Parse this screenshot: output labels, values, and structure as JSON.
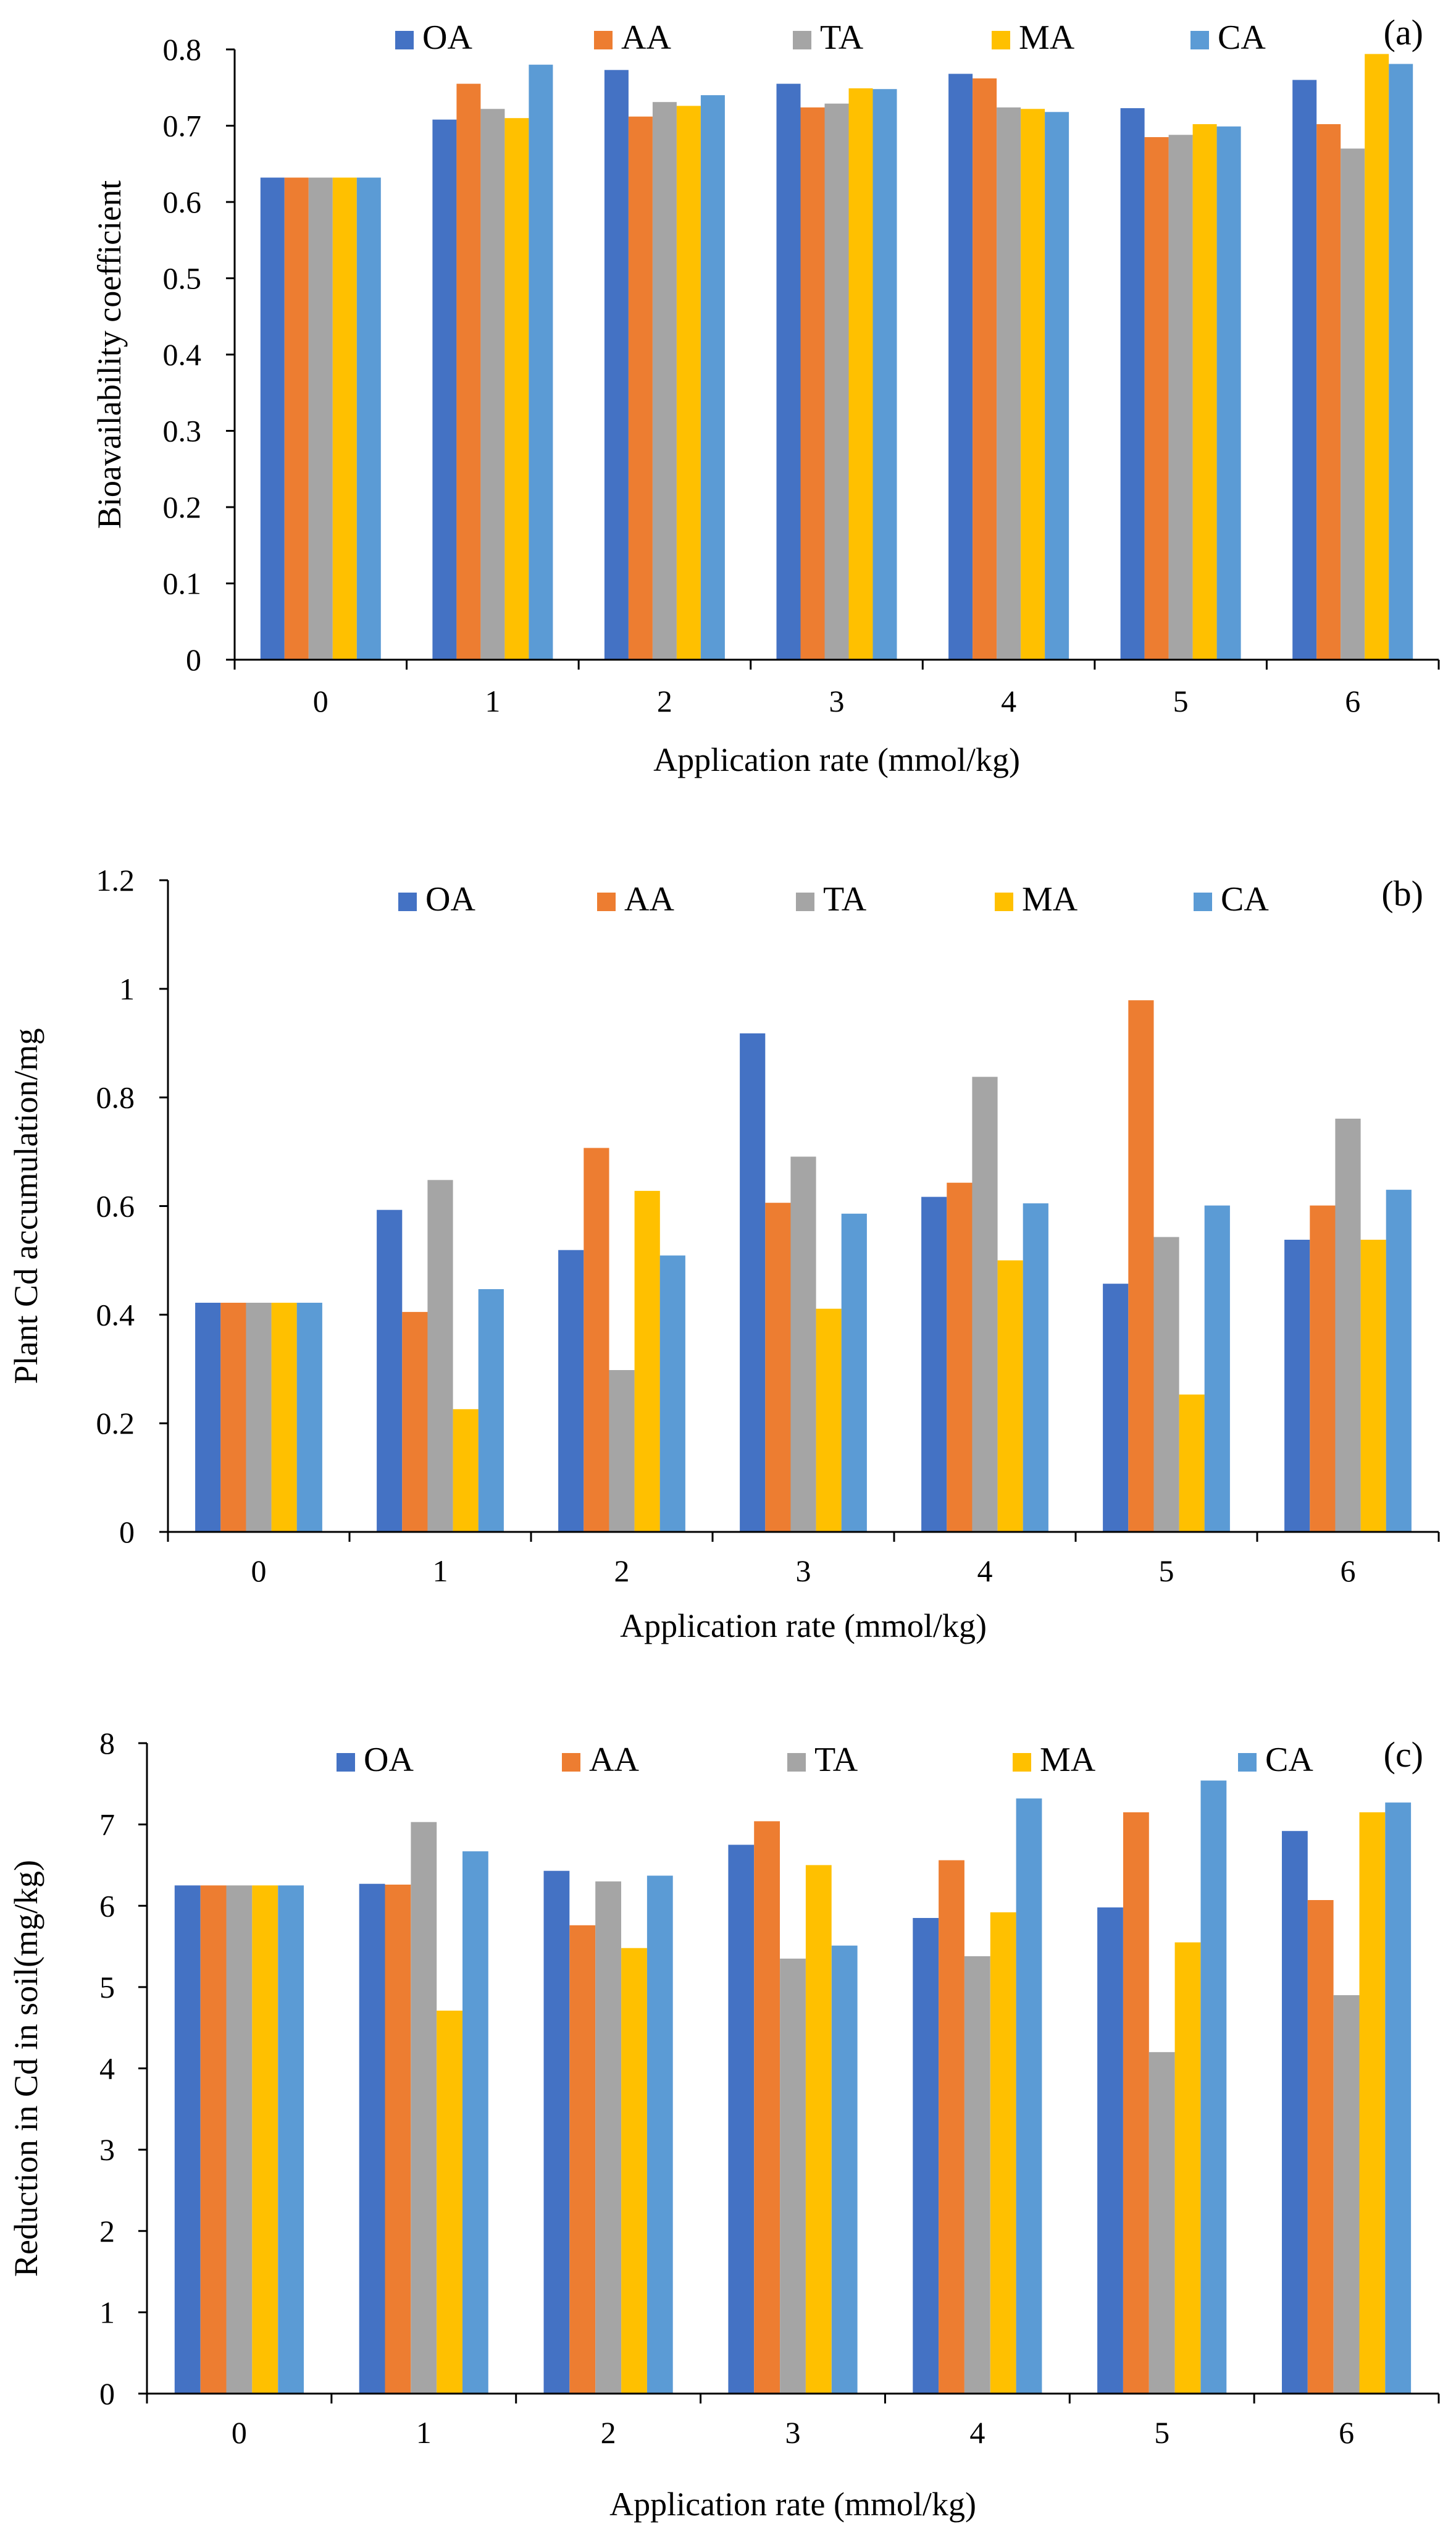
{
  "colors": {
    "OA": "#4472C4",
    "AA": "#ED7D31",
    "TA": "#A5A5A5",
    "MA": "#FFC000",
    "CA": "#5B9BD5"
  },
  "chart_data": [
    {
      "type": "bar",
      "panel_label": "(a)",
      "title": "",
      "xlabel": "Application rate (mmol/kg)",
      "ylabel": "Bioavailability coefficient",
      "categories": [
        "0",
        "1",
        "2",
        "3",
        "4",
        "5",
        "6"
      ],
      "ylim": [
        0,
        0.8
      ],
      "yticks": [
        "0",
        "0.1",
        "0.2",
        "0.3",
        "0.4",
        "0.5",
        "0.6",
        "0.7",
        "0.8"
      ],
      "legend_position": "top",
      "series": [
        {
          "name": "OA",
          "values": [
            0.632,
            0.708,
            0.773,
            0.755,
            0.768,
            0.723,
            0.76
          ]
        },
        {
          "name": "AA",
          "values": [
            0.632,
            0.755,
            0.712,
            0.724,
            0.762,
            0.685,
            0.702
          ]
        },
        {
          "name": "TA",
          "values": [
            0.632,
            0.722,
            0.731,
            0.729,
            0.724,
            0.688,
            0.67
          ]
        },
        {
          "name": "MA",
          "values": [
            0.632,
            0.71,
            0.726,
            0.749,
            0.722,
            0.702,
            0.794
          ]
        },
        {
          "name": "CA",
          "values": [
            0.632,
            0.78,
            0.74,
            0.748,
            0.718,
            0.699,
            0.781
          ]
        }
      ]
    },
    {
      "type": "bar",
      "panel_label": "(b)",
      "title": "",
      "xlabel": "Application rate (mmol/kg)",
      "ylabel": "Plant Cd accumulation/mg",
      "categories": [
        "0",
        "1",
        "2",
        "3",
        "4",
        "5",
        "6"
      ],
      "ylim": [
        0,
        1.2
      ],
      "yticks": [
        "0",
        "0.2",
        "0.4",
        "0.6",
        "0.8",
        "1",
        "1.2"
      ],
      "legend_position": "top",
      "series": [
        {
          "name": "OA",
          "values": [
            0.422,
            0.593,
            0.519,
            0.918,
            0.617,
            0.457,
            0.538
          ]
        },
        {
          "name": "AA",
          "values": [
            0.422,
            0.405,
            0.707,
            0.606,
            0.643,
            0.979,
            0.601
          ]
        },
        {
          "name": "TA",
          "values": [
            0.422,
            0.648,
            0.298,
            0.691,
            0.838,
            0.543,
            0.761
          ]
        },
        {
          "name": "MA",
          "values": [
            0.422,
            0.226,
            0.628,
            0.411,
            0.5,
            0.253,
            0.538
          ]
        },
        {
          "name": "CA",
          "values": [
            0.422,
            0.447,
            0.509,
            0.586,
            0.605,
            0.601,
            0.63
          ]
        }
      ]
    },
    {
      "type": "bar",
      "panel_label": "(c)",
      "title": "",
      "xlabel": "Application rate (mmol/kg)",
      "ylabel": "Reduction in Cd in soil(mg/kg)",
      "categories": [
        "0",
        "1",
        "2",
        "3",
        "4",
        "5",
        "6"
      ],
      "ylim": [
        0,
        8
      ],
      "yticks": [
        "0",
        "1",
        "2",
        "3",
        "4",
        "5",
        "6",
        "7",
        "8"
      ],
      "legend_position": "top",
      "series": [
        {
          "name": "OA",
          "values": [
            6.25,
            6.27,
            6.43,
            6.75,
            5.85,
            5.98,
            6.92
          ]
        },
        {
          "name": "AA",
          "values": [
            6.25,
            6.26,
            5.76,
            7.04,
            6.56,
            7.15,
            6.07
          ]
        },
        {
          "name": "TA",
          "values": [
            6.25,
            7.03,
            6.3,
            5.35,
            5.38,
            4.2,
            4.9
          ]
        },
        {
          "name": "MA",
          "values": [
            6.25,
            4.71,
            5.48,
            6.5,
            5.92,
            5.55,
            7.15
          ]
        },
        {
          "name": "CA",
          "values": [
            6.25,
            6.67,
            6.37,
            5.51,
            7.32,
            7.54,
            7.27
          ]
        }
      ]
    }
  ]
}
